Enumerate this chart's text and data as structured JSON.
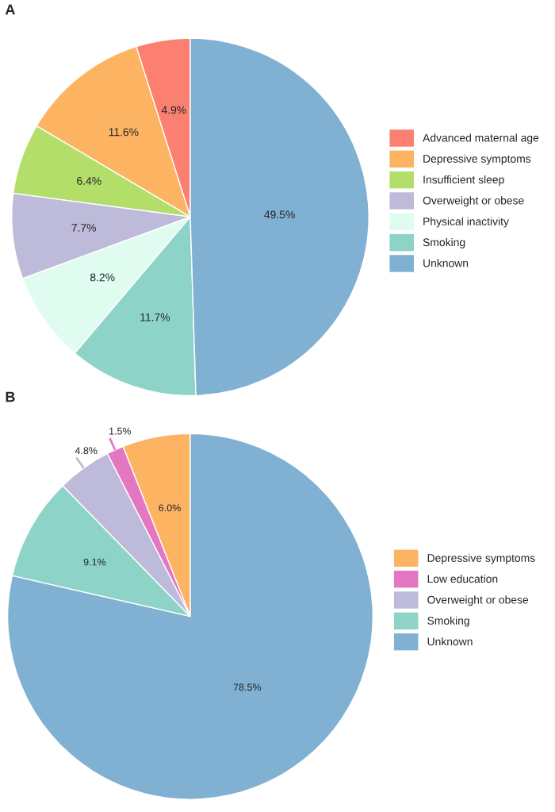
{
  "chart_data": [
    {
      "type": "pie",
      "title": "A",
      "categories": [
        "Advanced maternal age",
        "Depressive symptoms",
        "Insufficient sleep",
        "Overweight or obese",
        "Physical inactivity",
        "Smoking",
        "Unknown"
      ],
      "values": [
        4.9,
        11.6,
        6.4,
        7.7,
        8.2,
        11.7,
        49.5
      ],
      "value_labels": [
        "4.9%",
        "11.6%",
        "6.4%",
        "7.7%",
        "8.2%",
        "11.7%",
        "49.5%"
      ],
      "colors": [
        "#fb8072",
        "#fdb462",
        "#b3de69",
        "#bebada",
        "#e0fcf0",
        "#8dd3c7",
        "#80b1d3"
      ],
      "legend": "right"
    },
    {
      "type": "pie",
      "title": "B",
      "categories": [
        "Depressive symptoms",
        "Low education",
        "Overweight or obese",
        "Smoking",
        "Unknown"
      ],
      "values": [
        6.0,
        1.5,
        4.8,
        9.1,
        78.5
      ],
      "value_labels": [
        "6.0%",
        "1.5%",
        "4.8%",
        "9.1%",
        "78.5%"
      ],
      "colors": [
        "#fdb462",
        "#e377c2",
        "#bebada",
        "#8dd3c7",
        "#80b1d3"
      ],
      "legend": "right"
    }
  ]
}
